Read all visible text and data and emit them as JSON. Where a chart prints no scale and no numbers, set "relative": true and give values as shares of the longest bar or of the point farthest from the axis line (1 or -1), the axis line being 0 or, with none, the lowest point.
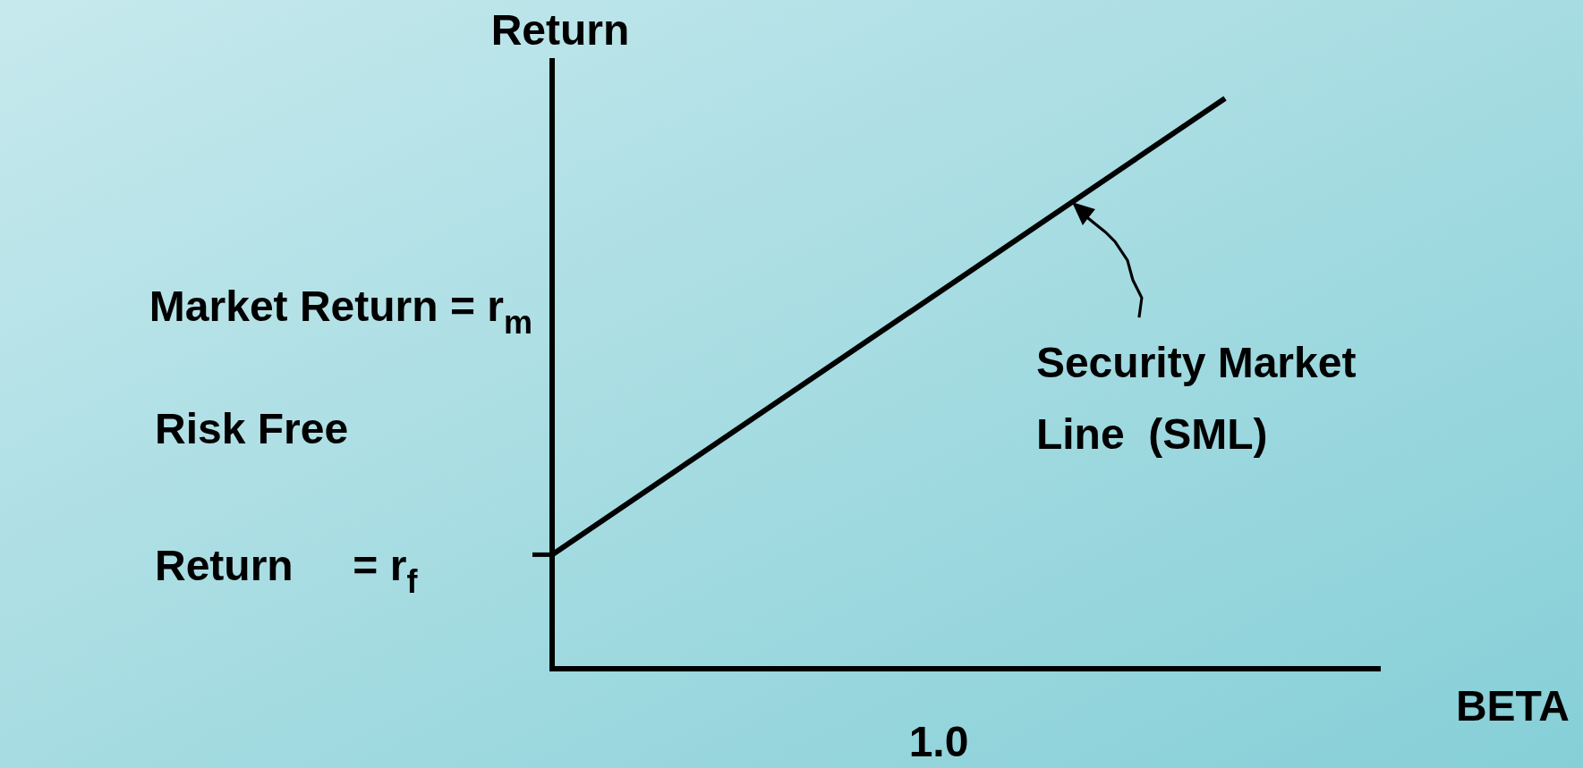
{
  "chart_data": {
    "type": "line",
    "relative": true,
    "xlabel": "BETA",
    "ylabel": "Return",
    "categories": [
      null,
      null
    ],
    "series": [
      {
        "color": "#000000",
        "values": [
          0.2,
          1
        ]
      }
    ],
    "annotations": [
      "Market Return = r$_{m}$",
      "Risk Free",
      "Return     = r$_{f}$",
      "Security Market Line  (SML)",
      "1.0"
    ]
  }
}
